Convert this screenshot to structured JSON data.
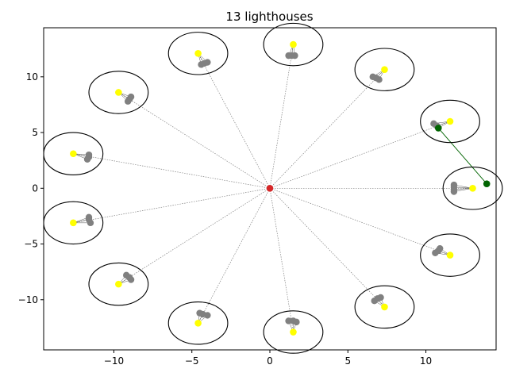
{
  "chart_data": {
    "type": "scatter",
    "title": "13 lighthouses",
    "xlabel": "",
    "ylabel": "",
    "xlim": [
      -14.5,
      14.5
    ],
    "ylim": [
      -14.5,
      14.4
    ],
    "grid": false,
    "x_ticks": [
      -10,
      -5,
      0,
      5,
      10
    ],
    "y_ticks": [
      -10,
      -5,
      0,
      5,
      10
    ],
    "x_tick_labels": [
      "−10",
      "−5",
      "0",
      "5",
      "10"
    ],
    "y_tick_labels": [
      "−10",
      "−5",
      "0",
      "5",
      "10"
    ],
    "center": [
      0,
      0
    ],
    "center_color": "#d62728",
    "lighthouse_color": "#ffff00",
    "ring_color": "#000000",
    "ring_radius": 1.9,
    "cluster_color": "#808080",
    "path_color": "#808080",
    "highlight_color": "#006400",
    "lighthouses": [
      {
        "x": 13.0,
        "y": 0.0,
        "cluster": [
          [
            11.8,
            0.3
          ],
          [
            11.8,
            0.1
          ],
          [
            11.8,
            -0.1
          ],
          [
            11.8,
            -0.3
          ]
        ]
      },
      {
        "x": 11.55,
        "y": 6.0,
        "cluster": [
          [
            10.5,
            5.8
          ],
          [
            10.7,
            5.6
          ],
          [
            10.8,
            5.4
          ]
        ]
      },
      {
        "x": 7.35,
        "y": 10.65,
        "cluster": [
          [
            6.6,
            10.0
          ],
          [
            6.8,
            9.9
          ],
          [
            7.0,
            9.75
          ]
        ]
      },
      {
        "x": 1.5,
        "y": 12.9,
        "cluster": [
          [
            1.2,
            11.9
          ],
          [
            1.4,
            11.9
          ],
          [
            1.6,
            11.9
          ]
        ]
      },
      {
        "x": -4.6,
        "y": 12.1,
        "cluster": [
          [
            -4.4,
            11.1
          ],
          [
            -4.2,
            11.2
          ],
          [
            -4.0,
            11.3
          ]
        ]
      },
      {
        "x": -9.7,
        "y": 8.6,
        "cluster": [
          [
            -9.1,
            7.8
          ],
          [
            -9.0,
            8.0
          ],
          [
            -8.9,
            8.2
          ]
        ]
      },
      {
        "x": -12.6,
        "y": 3.1,
        "cluster": [
          [
            -11.7,
            2.6
          ],
          [
            -11.6,
            2.8
          ],
          [
            -11.6,
            3.0
          ]
        ]
      },
      {
        "x": -12.6,
        "y": -3.1,
        "cluster": [
          [
            -11.6,
            -2.6
          ],
          [
            -11.6,
            -2.8
          ],
          [
            -11.5,
            -3.1
          ]
        ]
      },
      {
        "x": -9.7,
        "y": -8.6,
        "cluster": [
          [
            -9.2,
            -7.8
          ],
          [
            -9.0,
            -8.0
          ],
          [
            -8.9,
            -8.2
          ]
        ]
      },
      {
        "x": -4.6,
        "y": -12.1,
        "cluster": [
          [
            -4.5,
            -11.2
          ],
          [
            -4.3,
            -11.3
          ],
          [
            -4.0,
            -11.4
          ]
        ]
      },
      {
        "x": 1.5,
        "y": -12.9,
        "cluster": [
          [
            1.2,
            -11.9
          ],
          [
            1.5,
            -11.9
          ],
          [
            1.7,
            -12.0
          ]
        ]
      },
      {
        "x": 7.35,
        "y": -10.65,
        "cluster": [
          [
            6.7,
            -10.1
          ],
          [
            6.9,
            -9.9
          ],
          [
            7.1,
            -9.8
          ]
        ]
      },
      {
        "x": 11.55,
        "y": -6.0,
        "cluster": [
          [
            10.6,
            -5.8
          ],
          [
            10.8,
            -5.6
          ],
          [
            10.9,
            -5.4
          ]
        ]
      }
    ],
    "highlight_points": [
      [
        10.8,
        5.4
      ],
      [
        13.9,
        0.4
      ]
    ]
  }
}
